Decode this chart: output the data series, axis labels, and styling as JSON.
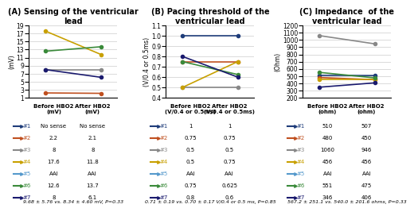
{
  "panel_A": {
    "title": "(A) Sensing of the ventricular\nlead",
    "ylabel": "(mV)",
    "xlabel_before": "Before HBO2\n(mV)",
    "xlabel_after": "After HBO2\n(mV)",
    "ylim": [
      1,
      19
    ],
    "yticks": [
      1,
      3,
      5,
      7,
      9,
      11,
      13,
      15,
      17,
      19
    ],
    "footnote": "9.68 ± 5.76 vs. 8.34 ± 4.60 mV, P=0.33",
    "series": [
      {
        "id": "#1",
        "color": "#1f3d7a",
        "before": null,
        "after": null,
        "label_before": "No sense",
        "label_after": "No sense"
      },
      {
        "id": "#2",
        "color": "#c05020",
        "before": 2.2,
        "after": 2.1,
        "label_before": "2.2",
        "label_after": "2.1"
      },
      {
        "id": "#3",
        "color": "#888888",
        "before": 8.0,
        "after": 8.0,
        "label_before": "8",
        "label_after": "8"
      },
      {
        "id": "#4",
        "color": "#c8a000",
        "before": 17.6,
        "after": 11.8,
        "label_before": "17.6",
        "label_after": "11.8"
      },
      {
        "id": "#5",
        "color": "#5599cc",
        "before": null,
        "after": null,
        "label_before": "AAI",
        "label_after": "AAI"
      },
      {
        "id": "#6",
        "color": "#3a8a3a",
        "before": 12.6,
        "after": 13.7,
        "label_before": "12.6",
        "label_after": "13.7"
      },
      {
        "id": "#7",
        "color": "#1a1a6e",
        "before": 8.0,
        "after": 6.1,
        "label_before": "8",
        "label_after": "6.1"
      }
    ]
  },
  "panel_B": {
    "title": "(B) Pacing threshold of the\nventricular lead",
    "ylabel": "(V/0.4 or 0.5ms)",
    "xlabel_before": "Before HBO2\n(V/0.4 or 0.5ms)",
    "xlabel_after": "After HBO2\n(V/0.4 or 0.5ms)",
    "ylim": [
      0.4,
      1.1
    ],
    "yticks": [
      0.4,
      0.5,
      0.6,
      0.7,
      0.8,
      0.9,
      1.0,
      1.1
    ],
    "footnote": "0.71 ± 0.19 vs. 0.70 ± 0.17 V/0.4 or 0.5 ms, P=0.85",
    "series": [
      {
        "id": "#1",
        "color": "#1f3d7a",
        "before": 1.0,
        "after": 1.0,
        "label_before": "1",
        "label_after": "1"
      },
      {
        "id": "#2",
        "color": "#c05020",
        "before": 0.75,
        "after": 0.75,
        "label_before": "0.75",
        "label_after": "0.75"
      },
      {
        "id": "#3",
        "color": "#888888",
        "before": 0.5,
        "after": 0.5,
        "label_before": "0.5",
        "label_after": "0.5"
      },
      {
        "id": "#4",
        "color": "#c8a000",
        "before": 0.5,
        "after": 0.75,
        "label_before": "0.5",
        "label_after": "0.75"
      },
      {
        "id": "#5",
        "color": "#5599cc",
        "before": null,
        "after": null,
        "label_before": "AAI",
        "label_after": "AAI"
      },
      {
        "id": "#6",
        "color": "#3a8a3a",
        "before": 0.75,
        "after": 0.625,
        "label_before": "0.75",
        "label_after": "0.625"
      },
      {
        "id": "#7",
        "color": "#1a1a6e",
        "before": 0.8,
        "after": 0.6,
        "label_before": "0.8",
        "label_after": "0.6"
      }
    ]
  },
  "panel_C": {
    "title": "(C) Impedance  of the\nventricular lead",
    "ylabel": "(Ohm)",
    "xlabel_before": "Before HBO2\n(ohm)",
    "xlabel_after": "After HBO2\n(ohm)",
    "ylim": [
      200,
      1200
    ],
    "yticks": [
      200,
      300,
      400,
      500,
      600,
      700,
      800,
      900,
      1000,
      1100,
      1200
    ],
    "footnote": "567.2 ± 251.1 vs. 540.0 ± 201.6 ohms, P=0.33",
    "series": [
      {
        "id": "#1",
        "color": "#1f3d7a",
        "before": 510,
        "after": 507,
        "label_before": "510",
        "label_after": "507"
      },
      {
        "id": "#2",
        "color": "#c05020",
        "before": 480,
        "after": 450,
        "label_before": "480",
        "label_after": "450"
      },
      {
        "id": "#3",
        "color": "#888888",
        "before": 1060,
        "after": 946,
        "label_before": "1060",
        "label_after": "946"
      },
      {
        "id": "#4",
        "color": "#c8a000",
        "before": 456,
        "after": 456,
        "label_before": "456",
        "label_after": "456"
      },
      {
        "id": "#5",
        "color": "#5599cc",
        "before": null,
        "after": null,
        "label_before": "AAI",
        "label_after": "AAI"
      },
      {
        "id": "#6",
        "color": "#3a8a3a",
        "before": 551,
        "after": 475,
        "label_before": "551",
        "label_after": "475"
      },
      {
        "id": "#7",
        "color": "#1a1a6e",
        "before": 346,
        "after": 406,
        "label_before": "346",
        "label_after": "406"
      }
    ]
  },
  "marker": "o",
  "markersize": 3,
  "linewidth": 1.2,
  "table_fontsize": 5.0,
  "footnote_fontsize": 4.5,
  "title_fontsize": 7.0,
  "ylabel_fontsize": 5.5,
  "tick_fontsize": 5.5,
  "bg_color": "#ffffff"
}
